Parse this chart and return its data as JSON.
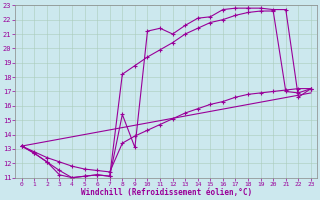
{
  "xlabel": "Windchill (Refroidissement éolien,°C)",
  "bg_color": "#cce8ee",
  "line_color": "#990099",
  "xlim": [
    -0.5,
    23.5
  ],
  "ylim": [
    11,
    23
  ],
  "xticks": [
    0,
    1,
    2,
    3,
    4,
    5,
    6,
    7,
    8,
    9,
    10,
    11,
    12,
    13,
    14,
    15,
    16,
    17,
    18,
    19,
    20,
    21,
    22,
    23
  ],
  "yticks": [
    11,
    12,
    13,
    14,
    15,
    16,
    17,
    18,
    19,
    20,
    21,
    22,
    23
  ],
  "s1x": [
    0,
    1,
    2,
    3,
    4,
    5,
    6,
    7,
    8,
    9,
    10,
    11,
    12,
    13,
    14,
    15,
    16,
    17,
    18
  ],
  "s1y": [
    13.2,
    12.7,
    12.1,
    11.2,
    11.0,
    11.1,
    11.2,
    11.1,
    15.4,
    13.1,
    21.2,
    21.4,
    21.0,
    21.6,
    22.1,
    22.2,
    22.7,
    22.8,
    22.8
  ],
  "s2x": [
    0,
    1,
    2,
    3,
    4,
    5,
    6,
    7,
    8,
    9,
    10,
    11,
    12,
    13,
    14,
    15,
    16,
    17,
    18,
    19,
    20,
    21,
    22,
    23
  ],
  "s2y": [
    13.2,
    12.7,
    12.1,
    11.5,
    11.0,
    11.1,
    11.2,
    11.1,
    18.2,
    18.8,
    19.4,
    19.9,
    20.4,
    21.0,
    21.4,
    21.8,
    22.0,
    22.3,
    22.5,
    22.6,
    22.6,
    17.0,
    16.9,
    17.2
  ],
  "s3x": [
    0,
    1,
    2,
    3,
    4,
    5,
    6,
    7,
    8,
    9,
    10,
    11,
    12,
    13,
    14,
    15,
    16,
    17,
    18,
    19,
    20,
    21,
    22,
    23
  ],
  "s3y": [
    13.2,
    12.8,
    12.4,
    12.1,
    11.8,
    11.6,
    11.5,
    11.4,
    13.4,
    13.9,
    14.3,
    14.7,
    15.1,
    15.5,
    15.8,
    16.1,
    16.3,
    16.6,
    16.8,
    16.9,
    17.0,
    17.1,
    17.2,
    17.2
  ],
  "s4x": [
    0,
    23
  ],
  "s4y": [
    13.2,
    16.9
  ],
  "s5x": [
    18,
    19,
    20,
    21,
    22,
    23
  ],
  "s5y": [
    22.8,
    22.8,
    22.7,
    22.7,
    16.6,
    17.2
  ]
}
